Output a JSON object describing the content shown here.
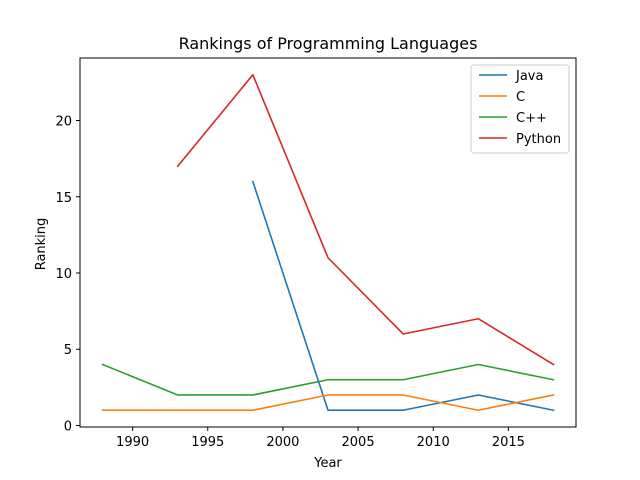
{
  "chart_data": {
    "type": "line",
    "title": "Rankings of Programming Languages",
    "xlabel": "Year",
    "ylabel": "Ranking",
    "xlim": [
      1986.5,
      2019.5
    ],
    "ylim": [
      -0.1,
      24.1
    ],
    "xticks": [
      1990,
      1995,
      2000,
      2005,
      2010,
      2015
    ],
    "yticks": [
      0,
      5,
      10,
      15,
      20
    ],
    "grid": false,
    "legend_position": "top-right",
    "series": [
      {
        "name": "Java",
        "color": "#1f77b4",
        "x": [
          1998,
          2003,
          2008,
          2013,
          2018
        ],
        "y": [
          16,
          1,
          1,
          2,
          1
        ]
      },
      {
        "name": "C",
        "color": "#ff7f0e",
        "x": [
          1988,
          1993,
          1998,
          2003,
          2008,
          2013,
          2018
        ],
        "y": [
          1,
          1,
          1,
          2,
          2,
          1,
          2
        ]
      },
      {
        "name": "C++",
        "color": "#2ca02c",
        "x": [
          1988,
          1993,
          1998,
          2003,
          2008,
          2013,
          2018
        ],
        "y": [
          4,
          2,
          2,
          3,
          3,
          4,
          3
        ]
      },
      {
        "name": "Python",
        "color": "#d62728",
        "x": [
          1993,
          1998,
          2003,
          2008,
          2013,
          2018
        ],
        "y": [
          17,
          23,
          11,
          6,
          7,
          4
        ]
      }
    ]
  }
}
